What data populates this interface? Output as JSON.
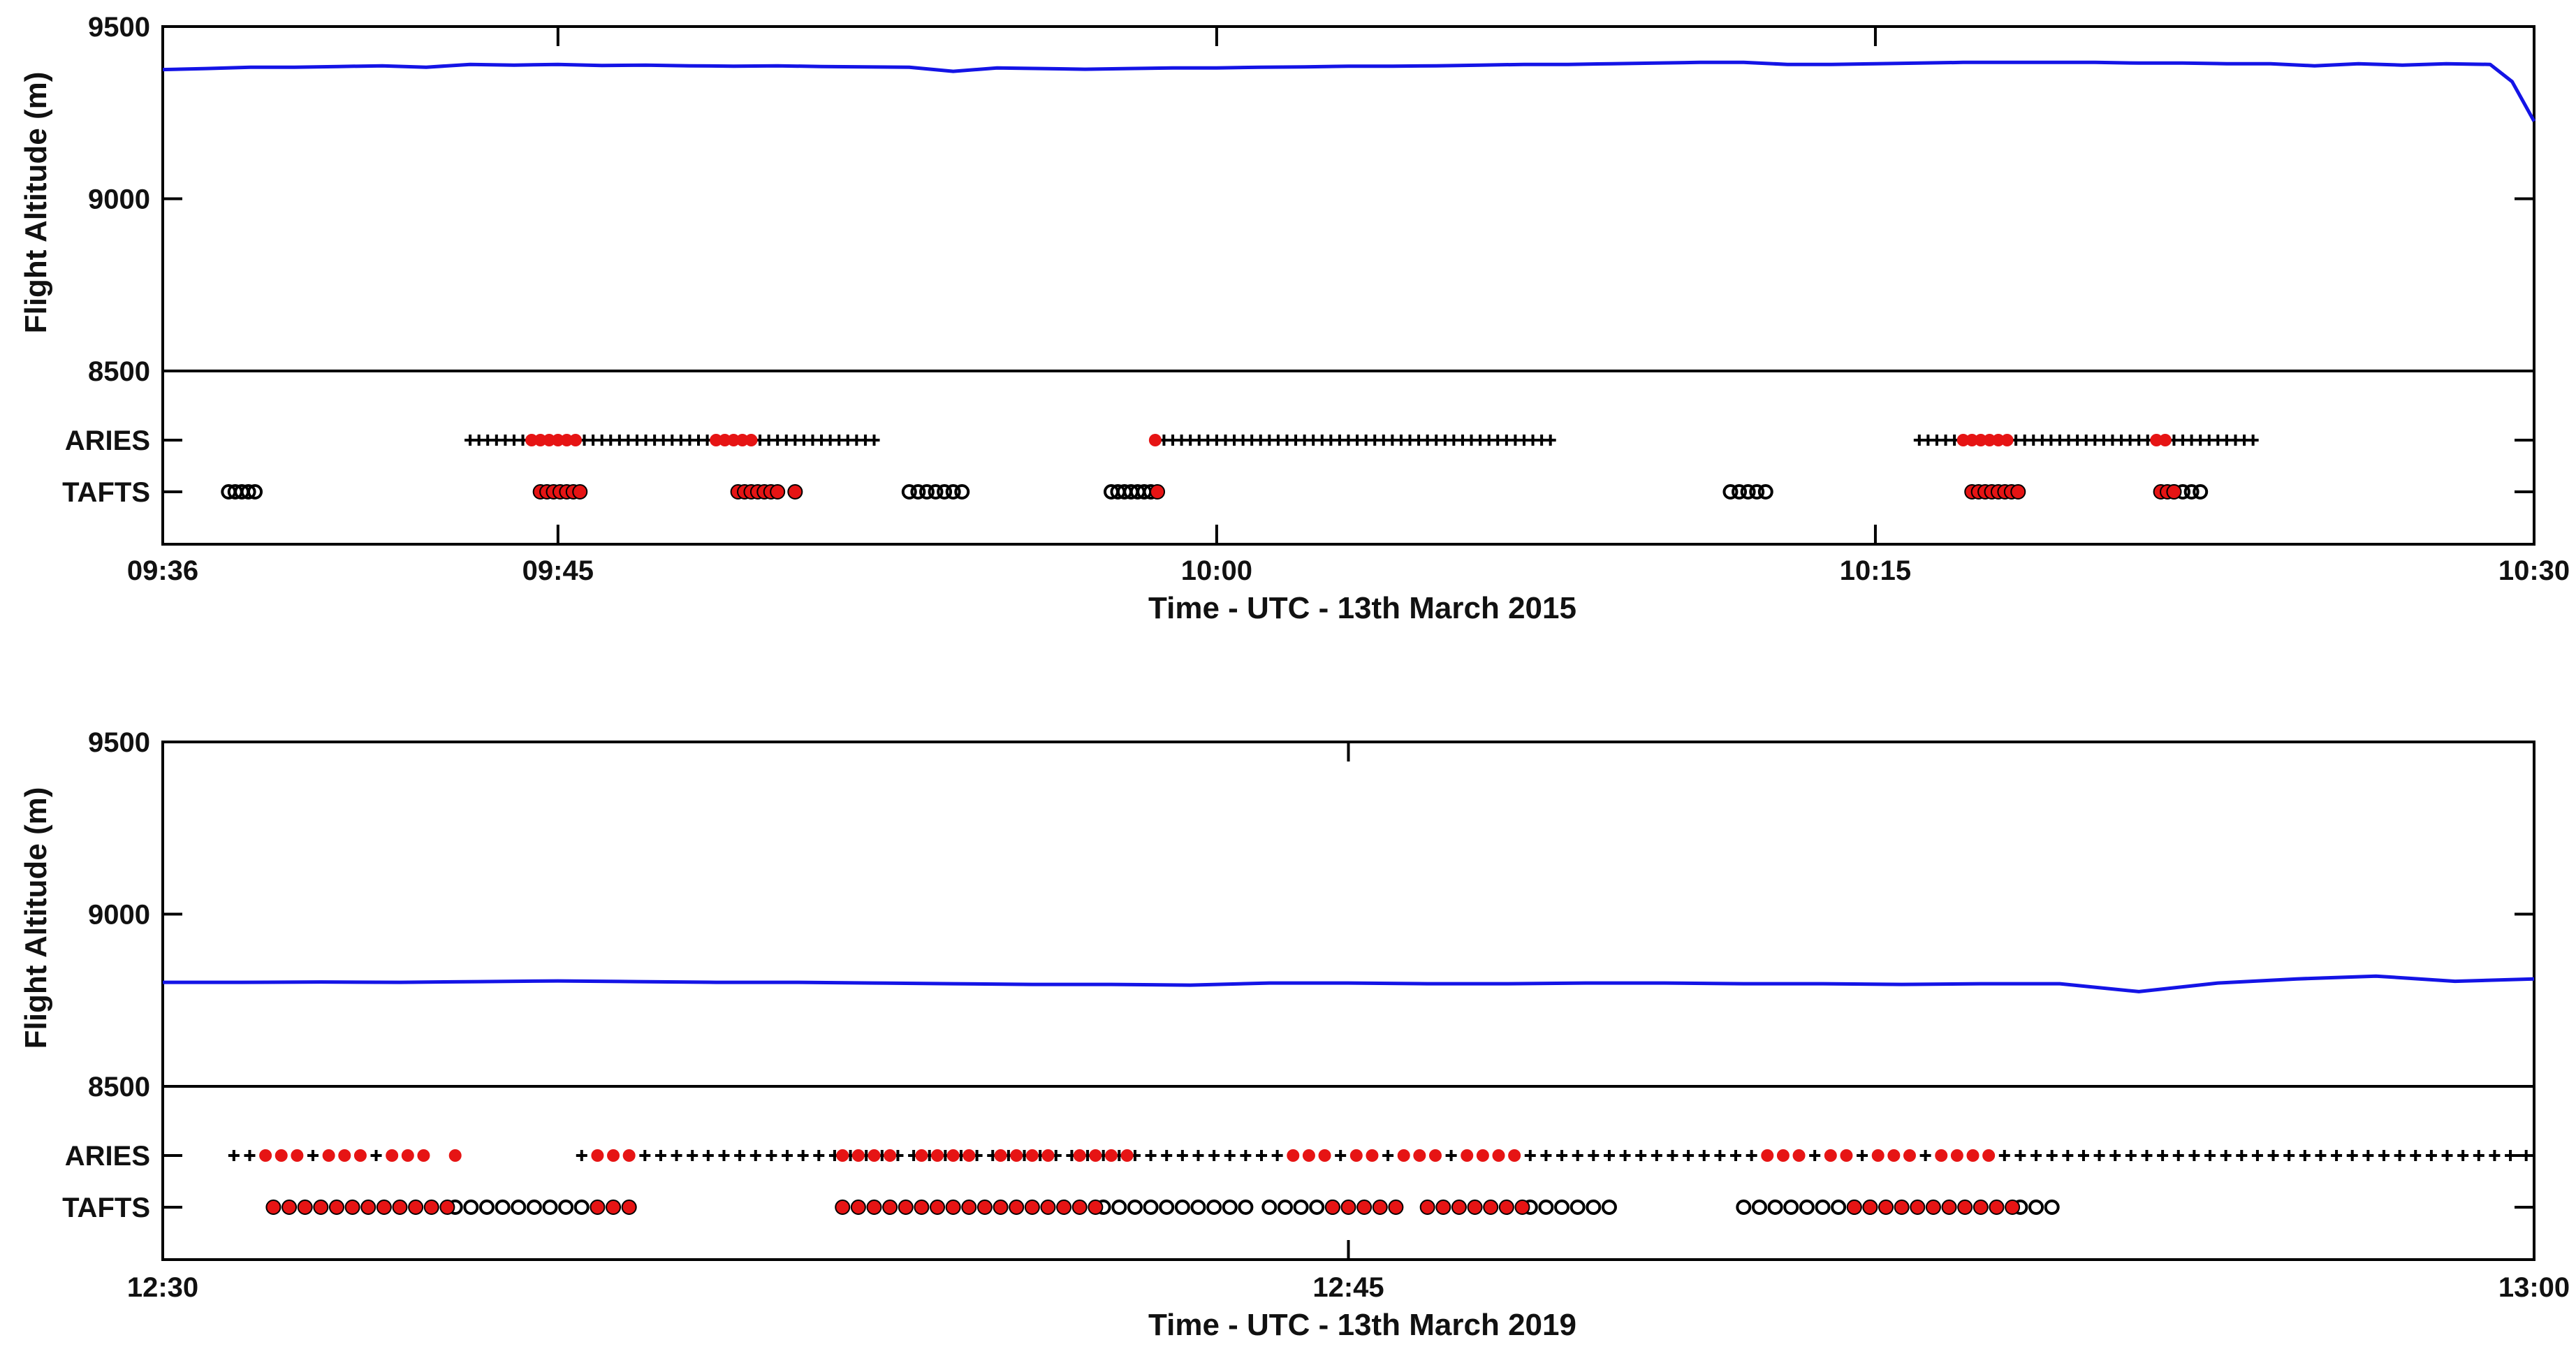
{
  "chart_data": [
    {
      "type": "line",
      "title": "",
      "xlabel": "Time - UTC - 13th March 2015",
      "ylabel": "Flight Altitude (m)",
      "ylim": [
        8500,
        9500
      ],
      "y_ticks": [
        8500,
        9000,
        9500
      ],
      "x_range_min": [
        576,
        630
      ],
      "x_ticks": [
        {
          "label": "09:36",
          "min": 576
        },
        {
          "label": "09:45",
          "min": 585
        },
        {
          "label": "10:00",
          "min": 600
        },
        {
          "label": "10:15",
          "min": 615
        },
        {
          "label": "10:30",
          "min": 630
        }
      ],
      "series": [
        {
          "name": "altitude",
          "color": "#1414e6",
          "x_min": [
            576,
            577,
            578,
            579,
            580,
            581,
            582,
            583,
            584,
            585,
            586,
            587,
            588,
            589,
            590,
            591,
            592,
            593,
            594,
            595,
            596,
            597,
            598,
            599,
            600,
            601,
            602,
            603,
            604,
            605,
            606,
            607,
            608,
            609,
            610,
            611,
            612,
            613,
            614,
            615,
            616,
            617,
            618,
            619,
            620,
            621,
            622,
            623,
            624,
            625,
            626,
            627,
            628,
            629,
            629.5,
            630
          ],
          "y": [
            9375,
            9378,
            9382,
            9382,
            9384,
            9386,
            9382,
            9390,
            9388,
            9390,
            9387,
            9388,
            9386,
            9385,
            9386,
            9384,
            9383,
            9382,
            9370,
            9380,
            9378,
            9376,
            9378,
            9380,
            9380,
            9382,
            9383,
            9385,
            9385,
            9386,
            9388,
            9390,
            9390,
            9392,
            9394,
            9396,
            9396,
            9390,
            9390,
            9392,
            9394,
            9396,
            9396,
            9396,
            9396,
            9394,
            9394,
            9392,
            9392,
            9386,
            9392,
            9388,
            9392,
            9390,
            9340,
            9225
          ]
        }
      ],
      "instruments": [
        "ARIES",
        "TAFTS"
      ],
      "aries_black_min": [
        583.0,
        583.2,
        583.4,
        583.6,
        583.8,
        584.0,
        584.2,
        584.4,
        584.6,
        584.8,
        585.0,
        585.2,
        585.4,
        585.6,
        585.8,
        586.0,
        586.2,
        586.4,
        586.6,
        586.8,
        587.0,
        587.2,
        587.4,
        587.6,
        587.8,
        588.0,
        588.2,
        588.4,
        588.6,
        588.8,
        589.0,
        589.2,
        589.4,
        589.6,
        589.8,
        590.0,
        590.2,
        590.4,
        590.6,
        590.8,
        591.0,
        591.2,
        591.4,
        591.6,
        591.8,
        592.0,
        592.2,
        598.8,
        599.0,
        599.2,
        599.4,
        599.6,
        599.8,
        600.0,
        600.2,
        600.4,
        600.6,
        600.8,
        601.0,
        601.2,
        601.4,
        601.6,
        601.8,
        602.0,
        602.2,
        602.4,
        602.6,
        602.8,
        603.0,
        603.2,
        603.4,
        603.6,
        603.8,
        604.0,
        604.2,
        604.4,
        604.6,
        604.8,
        605.0,
        605.2,
        605.4,
        605.6,
        605.8,
        606.0,
        606.2,
        606.4,
        606.6,
        606.8,
        607.0,
        607.2,
        607.4,
        607.6,
        616.0,
        616.2,
        616.4,
        616.6,
        616.8,
        617.0,
        617.2,
        617.4,
        617.6,
        617.8,
        618.0,
        618.2,
        618.4,
        618.6,
        618.8,
        619.0,
        619.2,
        619.4,
        619.6,
        619.8,
        620.0,
        620.2,
        620.4,
        620.6,
        620.8,
        621.0,
        621.2,
        621.4,
        621.6,
        621.8,
        622.0,
        622.2,
        622.4,
        622.6,
        622.8,
        623.0,
        623.2,
        623.4,
        623.6
      ],
      "aries_red_min": [
        584.4,
        584.6,
        584.8,
        585.0,
        585.2,
        585.4,
        588.6,
        588.8,
        589.0,
        589.2,
        589.4,
        598.6,
        617.0,
        617.2,
        617.4,
        617.6,
        617.8,
        618.0,
        621.4,
        621.6
      ],
      "tafts_black_min": [
        577.5,
        577.65,
        577.8,
        577.95,
        578.1,
        593.0,
        593.2,
        593.4,
        593.6,
        593.8,
        594.0,
        594.2,
        597.6,
        597.75,
        597.9,
        598.05,
        598.2,
        598.35,
        598.5,
        611.7,
        611.9,
        612.1,
        612.3,
        612.5,
        621.8,
        622.0,
        622.2,
        622.4
      ],
      "tafts_red_min": [
        584.6,
        584.75,
        584.9,
        585.05,
        585.2,
        585.35,
        585.5,
        589.1,
        589.25,
        589.4,
        589.55,
        589.7,
        589.85,
        590.0,
        590.4,
        598.65,
        617.2,
        617.35,
        617.5,
        617.65,
        617.8,
        617.95,
        618.1,
        618.25,
        621.5,
        621.65,
        621.8
      ]
    },
    {
      "type": "line",
      "title": "",
      "xlabel": "Time - UTC - 13th March 2019",
      "ylabel": "Flight Altitude (m)",
      "ylim": [
        8500,
        9500
      ],
      "y_ticks": [
        8500,
        9000,
        9500
      ],
      "x_range_min": [
        750,
        780
      ],
      "x_ticks": [
        {
          "label": "12:30",
          "min": 750
        },
        {
          "label": "12:45",
          "min": 765
        },
        {
          "label": "13:00",
          "min": 780
        }
      ],
      "series": [
        {
          "name": "altitude",
          "color": "#1414e6",
          "x_min": [
            750,
            751,
            752,
            753,
            754,
            755,
            756,
            757,
            758,
            759,
            760,
            761,
            762,
            763,
            764,
            765,
            766,
            767,
            768,
            769,
            770,
            771,
            772,
            773,
            774,
            775,
            776,
            777,
            778,
            779,
            780
          ],
          "y": [
            8802,
            8802,
            8803,
            8802,
            8804,
            8806,
            8804,
            8802,
            8802,
            8800,
            8798,
            8796,
            8796,
            8794,
            8800,
            8800,
            8798,
            8798,
            8800,
            8800,
            8798,
            8798,
            8796,
            8798,
            8798,
            8775,
            8800,
            8812,
            8820,
            8805,
            8812
          ]
        }
      ],
      "instruments": [
        "ARIES",
        "TAFTS"
      ],
      "aries_black_min": [
        750.9,
        751.1,
        751.3,
        751.5,
        751.7,
        751.9,
        752.1,
        752.3,
        752.5,
        752.7,
        752.9,
        753.1,
        755.3,
        755.5,
        755.7,
        755.9,
        756.1,
        756.3,
        756.5,
        756.7,
        756.9,
        757.1,
        757.3,
        757.5,
        757.7,
        757.9,
        758.1,
        758.3,
        758.5,
        758.7,
        758.9,
        759.1,
        759.3,
        759.5,
        759.7,
        759.9,
        760.1,
        760.3,
        760.5,
        760.7,
        760.9,
        761.1,
        761.3,
        761.5,
        761.7,
        761.9,
        762.1,
        762.3,
        762.5,
        762.7,
        762.9,
        763.1,
        763.3,
        763.5,
        763.7,
        763.9,
        764.1,
        764.3,
        764.5,
        764.7,
        764.9,
        765.1,
        765.3,
        765.5,
        765.7,
        765.9,
        766.1,
        766.3,
        766.5,
        766.7,
        766.9,
        767.1,
        767.3,
        767.5,
        767.7,
        767.9,
        768.1,
        768.3,
        768.5,
        768.7,
        768.9,
        769.1,
        769.3,
        769.5,
        769.7,
        769.9,
        770.1,
        770.3,
        770.5,
        770.7,
        770.9,
        771.1,
        771.3,
        771.5,
        771.7,
        771.9,
        772.1,
        772.3,
        772.5,
        772.7,
        772.9,
        773.1,
        773.3,
        773.5,
        773.7,
        773.9,
        774.1,
        774.3,
        774.5,
        774.7,
        774.9,
        775.1,
        775.3,
        775.5,
        775.7,
        775.9,
        776.1,
        776.3,
        776.5,
        776.7,
        776.9,
        777.1,
        777.3,
        777.5,
        777.7,
        777.9,
        778.1,
        778.3,
        778.5,
        778.7,
        778.9,
        779.1,
        779.3,
        779.5,
        779.7,
        779.9
      ],
      "aries_red_min": [
        751.3,
        751.5,
        751.7,
        752.1,
        752.3,
        752.5,
        752.9,
        753.1,
        753.3,
        753.7,
        755.5,
        755.7,
        755.9,
        758.6,
        758.8,
        759.0,
        759.2,
        759.6,
        759.8,
        760.0,
        760.2,
        760.6,
        760.8,
        761.0,
        761.2,
        761.6,
        761.8,
        762.0,
        762.2,
        764.3,
        764.5,
        764.7,
        765.1,
        765.3,
        765.7,
        765.9,
        766.1,
        766.5,
        766.7,
        766.9,
        767.1,
        770.3,
        770.5,
        770.7,
        771.1,
        771.3,
        771.7,
        771.9,
        772.1,
        772.5,
        772.7,
        772.9,
        773.1
      ],
      "tafts_black_min": [
        753.7,
        753.9,
        754.1,
        754.3,
        754.5,
        754.7,
        754.9,
        755.1,
        755.3,
        761.9,
        762.1,
        762.3,
        762.5,
        762.7,
        762.9,
        763.1,
        763.3,
        763.5,
        763.7,
        764.0,
        764.2,
        764.4,
        764.6,
        764.8,
        767.3,
        767.5,
        767.7,
        767.9,
        768.1,
        768.3,
        770.0,
        770.2,
        770.4,
        770.6,
        770.8,
        771.0,
        771.2,
        771.4,
        771.6,
        773.5,
        773.7,
        773.9
      ],
      "tafts_red_min": [
        751.4,
        751.6,
        751.8,
        752.0,
        752.2,
        752.4,
        752.6,
        752.8,
        753.0,
        753.2,
        753.4,
        753.6,
        755.5,
        755.7,
        755.9,
        758.6,
        758.8,
        759.0,
        759.2,
        759.4,
        759.6,
        759.8,
        760.0,
        760.2,
        760.4,
        760.6,
        760.8,
        761.0,
        761.2,
        761.4,
        761.6,
        761.8,
        764.8,
        765.0,
        765.2,
        765.4,
        765.6,
        766.0,
        766.2,
        766.4,
        766.6,
        766.8,
        767.0,
        767.2,
        771.4,
        771.6,
        771.8,
        772.0,
        772.2,
        772.4,
        772.6,
        772.8,
        773.0,
        773.2,
        773.4
      ]
    }
  ]
}
